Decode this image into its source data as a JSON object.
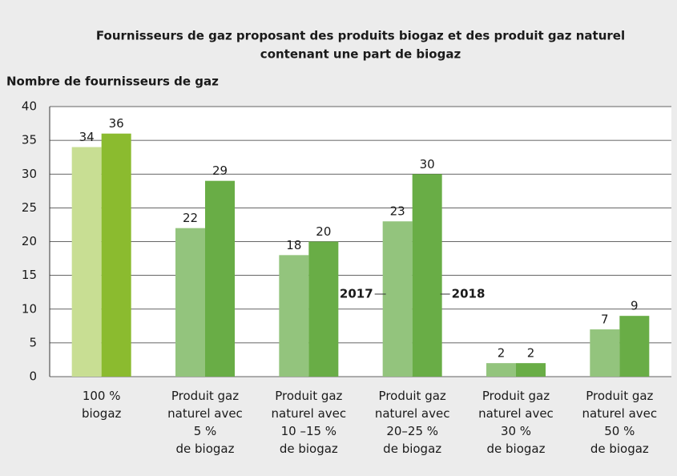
{
  "chart_data": {
    "type": "bar",
    "title": [
      "Fournisseurs de gaz proposant des produits biogaz et des produit gaz naturel",
      "contenant une part de biogaz"
    ],
    "y_label": "Nombre de fournisseurs de gaz",
    "categories": [
      "100 %\nbiogaz",
      "Produit gaz\nnaturel avec\n5 %\nde biogaz",
      "Produit gaz\nnaturel avec\n10 –15 %\nde biogaz",
      "Produit gaz\nnaturel avec\n20–25 %\nde biogaz",
      "Produit gaz\nnaturel avec\n30 %\nde biogaz",
      "Produit gaz\nnaturel avec\n50 %\nde biogaz"
    ],
    "series": [
      {
        "name": "2017",
        "color": "#93c47d",
        "colors": [
          "#c8de93",
          "#93c47d",
          "#93c47d",
          "#93c47d",
          "#93c47d",
          "#93c47d"
        ],
        "values": [
          34,
          22,
          18,
          23,
          2,
          7
        ]
      },
      {
        "name": "2018",
        "color": "#69ad46",
        "colors": [
          "#8bbb2f",
          "#69ad46",
          "#69ad46",
          "#69ad46",
          "#69ad46",
          "#69ad46"
        ],
        "values": [
          36,
          29,
          20,
          30,
          2,
          9
        ]
      }
    ],
    "ylim": [
      0,
      40
    ],
    "yticks": [
      0,
      5,
      10,
      15,
      20,
      25,
      30,
      35,
      40
    ],
    "grid": true
  }
}
